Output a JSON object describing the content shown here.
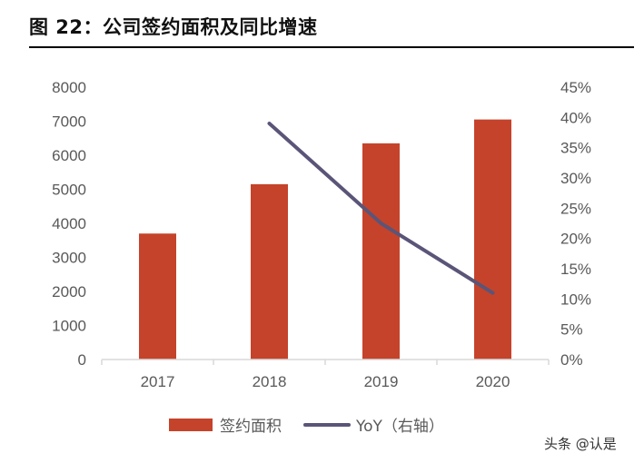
{
  "figure_title": "图 22：公司签约面积及同比增速",
  "watermark": "头条 @认是",
  "colors": {
    "bar": "#C5432A",
    "line": "#5A5578",
    "axis": "#D9D9D9",
    "text": "#595959"
  },
  "chart_data": {
    "type": "bar",
    "categories": [
      "2017",
      "2018",
      "2019",
      "2020"
    ],
    "series": [
      {
        "name": "签约面积",
        "type": "bar",
        "axis": "left",
        "values": [
          3700,
          5150,
          6350,
          7050
        ]
      },
      {
        "name": "YoY（右轴）",
        "type": "line",
        "axis": "right",
        "values": [
          null,
          0.39,
          0.225,
          0.11
        ]
      }
    ],
    "y_left": {
      "min": 0,
      "max": 8000,
      "ticks": [
        0,
        1000,
        2000,
        3000,
        4000,
        5000,
        6000,
        7000,
        8000
      ],
      "tick_labels": [
        "0",
        "1000",
        "2000",
        "3000",
        "4000",
        "5000",
        "6000",
        "7000",
        "8000"
      ]
    },
    "y_right": {
      "min": 0,
      "max": 0.45,
      "ticks": [
        0,
        0.05,
        0.1,
        0.15,
        0.2,
        0.25,
        0.3,
        0.35,
        0.4,
        0.45
      ],
      "tick_labels": [
        "0%",
        "5%",
        "10%",
        "15%",
        "20%",
        "25%",
        "30%",
        "35%",
        "40%",
        "45%"
      ]
    },
    "grid": false,
    "legend_position": "bottom"
  }
}
